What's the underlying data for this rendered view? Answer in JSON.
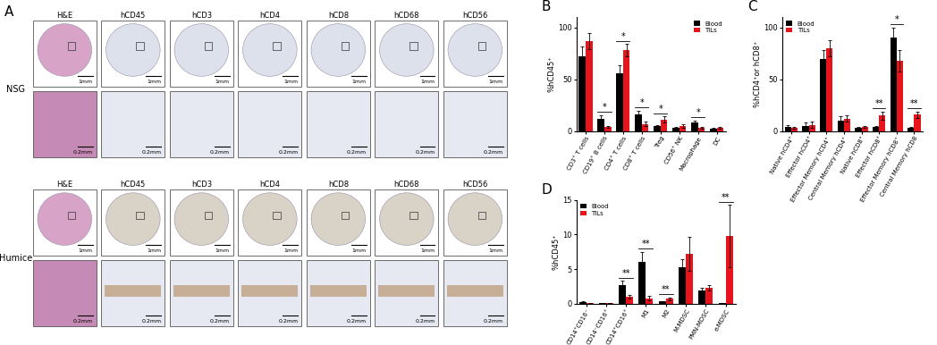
{
  "panel_A": {
    "title": "A",
    "columns": [
      "H&E",
      "hCD45",
      "hCD3",
      "hCD4",
      "hCD8",
      "hCD68",
      "hCD56"
    ],
    "rows": [
      "NSG",
      "Humice"
    ],
    "scale_bars": [
      "1mm",
      "0.2mm"
    ]
  },
  "chart_data": [
    {
      "type": "bar",
      "title": "B",
      "y_label": "%hCD45⁺",
      "categories": [
        "CD3⁺ T cells",
        "CD19⁺ B cells",
        "CD4⁺ T cells",
        "CD8⁺ T cells",
        "Treg",
        "CD56⁺ NK",
        "Macrophage",
        "DC"
      ],
      "series": [
        {
          "name": "Blood",
          "color": "#000000",
          "values": [
            72,
            12,
            56,
            16,
            5,
            3,
            8,
            2
          ],
          "errors": [
            10,
            3,
            8,
            4,
            1,
            1,
            2,
            1
          ]
        },
        {
          "name": "TILs",
          "color": "#e8141c",
          "values": [
            87,
            4,
            78,
            7,
            11,
            5,
            3,
            3
          ],
          "errors": [
            8,
            1,
            6,
            2,
            3,
            2,
            1,
            1
          ]
        }
      ],
      "ylim": [
        0,
        110
      ],
      "yticks": [
        0,
        50,
        100
      ],
      "legend": "upper right",
      "annotations": [
        {
          "category": "CD19⁺ B cells",
          "text": "*"
        },
        {
          "category": "CD4⁺ T cells",
          "text": "*"
        },
        {
          "category": "CD8⁺ T cells",
          "text": "*"
        },
        {
          "category": "Treg",
          "text": "*"
        },
        {
          "category": "Macrophage",
          "text": "*"
        }
      ]
    },
    {
      "type": "bar",
      "title": "C",
      "y_label": "%hCD4⁺or hCD8⁺",
      "categories": [
        "Native hCD4⁺",
        "Effector hCD4⁺",
        "Effector Memory hCD4⁺",
        "Central Memory hCD4⁺",
        "Native hCD8⁺",
        "Effector hCD8⁺",
        "Effector Memory hCD8⁺",
        "Central Memory hCD8"
      ],
      "series": [
        {
          "name": "Blood",
          "color": "#000000",
          "values": [
            4,
            5,
            70,
            10,
            3,
            4,
            90,
            3
          ],
          "errors": [
            2,
            3,
            8,
            4,
            1,
            1,
            10,
            1
          ]
        },
        {
          "name": "TILs",
          "color": "#e8141c",
          "values": [
            3,
            6,
            80,
            12,
            4,
            15,
            68,
            16
          ],
          "errors": [
            1,
            3,
            8,
            3,
            1,
            4,
            10,
            3
          ]
        }
      ],
      "ylim": [
        0,
        110
      ],
      "yticks": [
        0,
        50,
        100
      ],
      "legend": "upper left",
      "annotations": [
        {
          "category": "Effector hCD8⁺",
          "text": "**"
        },
        {
          "category": "Effector Memory hCD8⁺",
          "text": "*"
        },
        {
          "category": "Central Memory hCD8",
          "text": "**"
        }
      ]
    },
    {
      "type": "bar",
      "title": "D",
      "y_label": "%hCD45⁺",
      "categories": [
        "CD14⁺CD16⁻",
        "CD14⁻CD16⁺",
        "CD14⁺CD16⁺",
        "M1",
        "M2",
        "M-MDSC",
        "PMN-MDSC",
        "e-MDSC"
      ],
      "series": [
        {
          "name": "Blood",
          "color": "#000000",
          "values": [
            0.2,
            0.1,
            2.7,
            6.0,
            0.3,
            5.3,
            1.9,
            0.1
          ],
          "errors": [
            0.1,
            0.05,
            0.6,
            1.5,
            0.1,
            1.2,
            0.4,
            0.05
          ]
        },
        {
          "name": "TILs",
          "color": "#e8141c",
          "values": [
            0.1,
            0.1,
            1.0,
            0.8,
            0.7,
            7.2,
            2.3,
            9.8
          ],
          "errors": [
            0.05,
            0.05,
            0.3,
            0.3,
            0.2,
            2.5,
            0.4,
            4.5
          ]
        }
      ],
      "ylim": [
        0,
        15
      ],
      "yticks": [
        0,
        5,
        10,
        15
      ],
      "legend": "upper left",
      "annotations": [
        {
          "category": "CD14⁺CD16⁺",
          "text": "**"
        },
        {
          "category": "M1",
          "text": "**"
        },
        {
          "category": "M2",
          "text": "**"
        },
        {
          "category": "e-MDSC",
          "text": "**"
        }
      ]
    }
  ]
}
